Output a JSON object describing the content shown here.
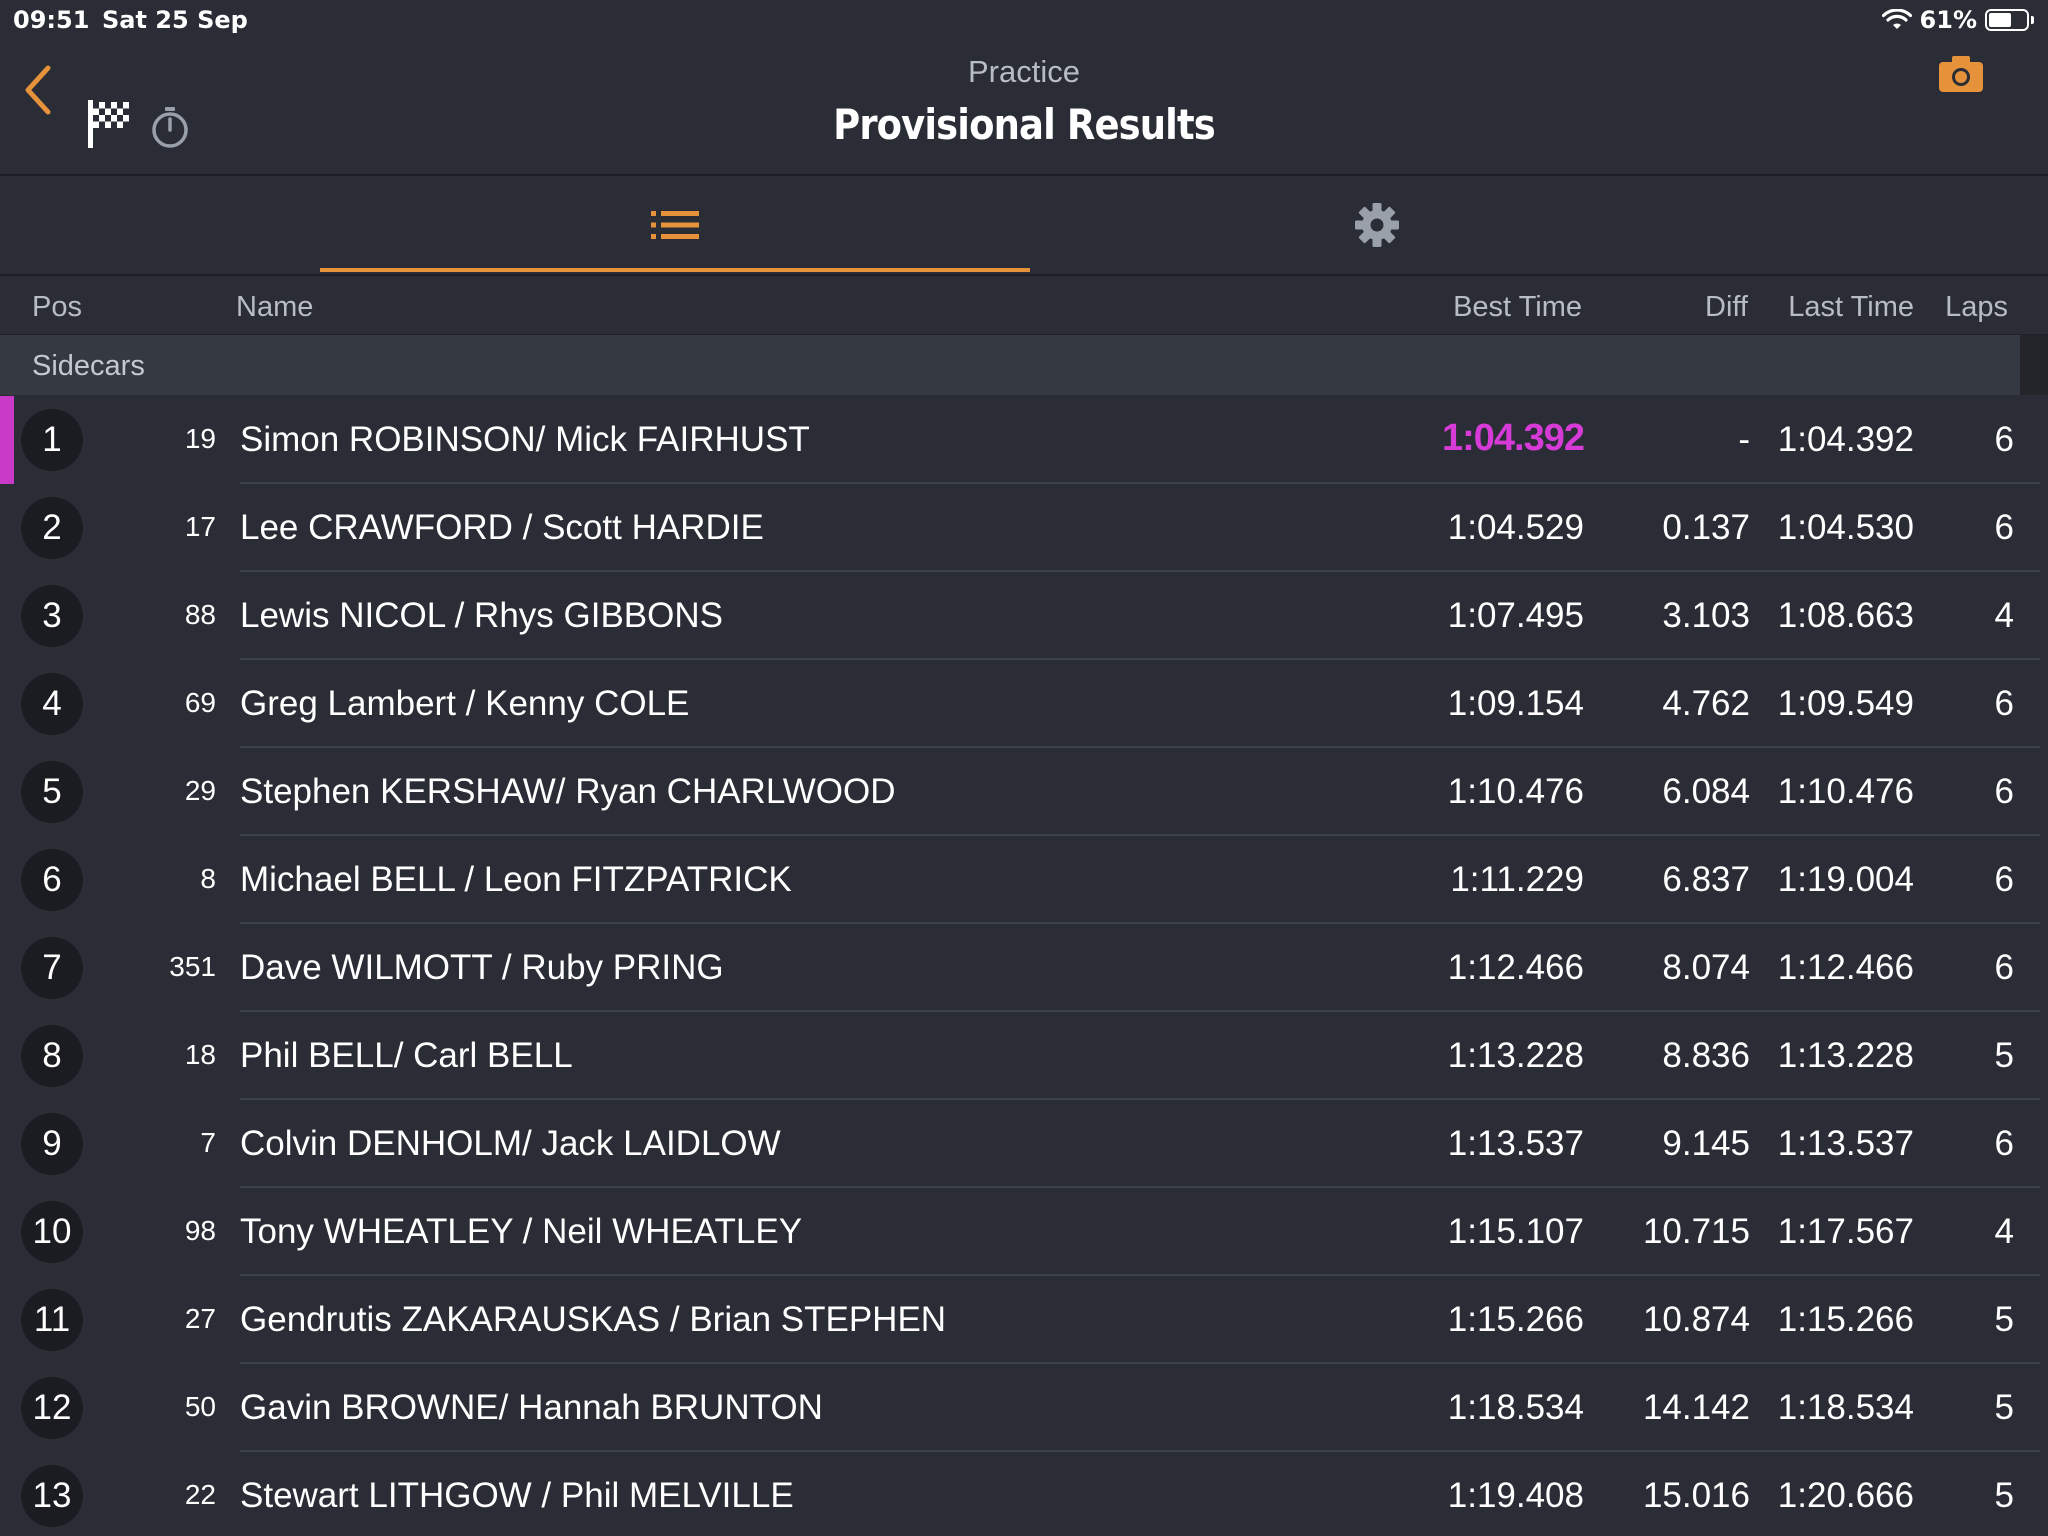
{
  "status_bar": {
    "time": "09:51",
    "date": "Sat 25 Sep",
    "battery": "61%",
    "battery_level": 0.61
  },
  "header": {
    "subtitle": "Practice",
    "title": "Provisional Results"
  },
  "tabs": [
    {
      "icon": "list-icon",
      "active": true
    },
    {
      "icon": "gear-icon",
      "active": false
    }
  ],
  "columns": {
    "pos": "Pos",
    "name": "Name",
    "best_time": "Best Time",
    "diff": "Diff",
    "last_time": "Last Time",
    "laps": "Laps"
  },
  "section": "Sidecars",
  "colors": {
    "accent": "#e6923a",
    "fastest": "#d63bd8",
    "background": "#2a2d35"
  },
  "results": [
    {
      "pos": "1",
      "num": "19",
      "name": "Simon ROBINSON/ Mick FAIRHUST",
      "best": "1:04.392",
      "diff": "-",
      "last": "1:04.392",
      "laps": "6",
      "fastest": true
    },
    {
      "pos": "2",
      "num": "17",
      "name": "Lee CRAWFORD / Scott HARDIE",
      "best": "1:04.529",
      "diff": "0.137",
      "last": "1:04.530",
      "laps": "6"
    },
    {
      "pos": "3",
      "num": "88",
      "name": "Lewis NICOL / Rhys GIBBONS",
      "best": "1:07.495",
      "diff": "3.103",
      "last": "1:08.663",
      "laps": "4"
    },
    {
      "pos": "4",
      "num": "69",
      "name": "Greg Lambert / Kenny COLE",
      "best": "1:09.154",
      "diff": "4.762",
      "last": "1:09.549",
      "laps": "6"
    },
    {
      "pos": "5",
      "num": "29",
      "name": "Stephen KERSHAW/ Ryan CHARLWOOD",
      "best": "1:10.476",
      "diff": "6.084",
      "last": "1:10.476",
      "laps": "6"
    },
    {
      "pos": "6",
      "num": "8",
      "name": "Michael BELL / Leon FITZPATRICK",
      "best": "1:11.229",
      "diff": "6.837",
      "last": "1:19.004",
      "laps": "6"
    },
    {
      "pos": "7",
      "num": "351",
      "name": "Dave WILMOTT /  Ruby PRING",
      "best": "1:12.466",
      "diff": "8.074",
      "last": "1:12.466",
      "laps": "6"
    },
    {
      "pos": "8",
      "num": "18",
      "name": "Phil BELL/ Carl BELL",
      "best": "1:13.228",
      "diff": "8.836",
      "last": "1:13.228",
      "laps": "5"
    },
    {
      "pos": "9",
      "num": "7",
      "name": "Colvin DENHOLM/ Jack LAIDLOW",
      "best": "1:13.537",
      "diff": "9.145",
      "last": "1:13.537",
      "laps": "6"
    },
    {
      "pos": "10",
      "num": "98",
      "name": "Tony WHEATLEY / Neil WHEATLEY",
      "best": "1:15.107",
      "diff": "10.715",
      "last": "1:17.567",
      "laps": "4"
    },
    {
      "pos": "11",
      "num": "27",
      "name": "Gendrutis ZAKARAUSKAS / Brian STEPHEN",
      "best": "1:15.266",
      "diff": "10.874",
      "last": "1:15.266",
      "laps": "5"
    },
    {
      "pos": "12",
      "num": "50",
      "name": "Gavin BROWNE/ Hannah BRUNTON",
      "best": "1:18.534",
      "diff": "14.142",
      "last": "1:18.534",
      "laps": "5"
    },
    {
      "pos": "13",
      "num": "22",
      "name": "Stewart LITHGOW / Phil MELVILLE",
      "best": "1:19.408",
      "diff": "15.016",
      "last": "1:20.666",
      "laps": "5"
    }
  ]
}
